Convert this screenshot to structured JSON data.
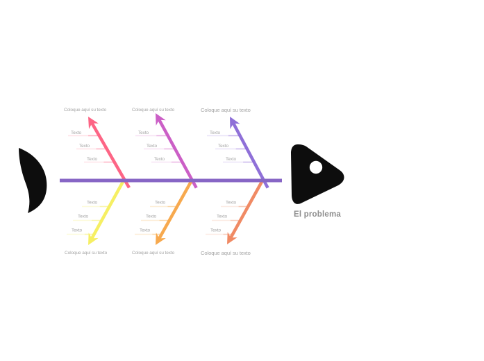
{
  "canvas": {
    "background": "#ffffff"
  },
  "problem": {
    "label": "El problema",
    "color": "#8d8d8d"
  },
  "fish": {
    "body_color": "#0d0d0d",
    "eye_color": "#ffffff",
    "spine_color": "#8766c5"
  },
  "label_color": "#a4a4a4",
  "branches": {
    "top": [
      {
        "title": "Coloque aquí su texto",
        "color": "#fd6585",
        "line_light": "#ffe2e8",
        "line_mid": "#ffb0c1",
        "items": [
          "Texto",
          "Texto",
          "Texto"
        ],
        "title_large": false
      },
      {
        "title": "Coloque aquí su texto",
        "color": "#cb5fc6",
        "line_light": "#f7e2f5",
        "line_mid": "#e9b2e3",
        "items": [
          "Texto",
          "Texto",
          "Texto"
        ],
        "title_large": false
      },
      {
        "title": "Coloque aquí su texto",
        "color": "#8f70d8",
        "line_light": "#e9e3f8",
        "line_mid": "#c7b4ec",
        "items": [
          "Texto",
          "Texto",
          "Texto"
        ],
        "title_large": true
      }
    ],
    "bottom": [
      {
        "title": "Coloque aquí su texto",
        "color": "#f6ef63",
        "line_light": "#fdfbdb",
        "line_mid": "#faf6ad",
        "items": [
          "Texto",
          "Texto",
          "Texto"
        ],
        "title_large": false
      },
      {
        "title": "Coloque aquí su texto",
        "color": "#f7a94e",
        "line_light": "#fdeed7",
        "line_mid": "#fbd8a9",
        "items": [
          "Texto",
          "Texto",
          "Texto"
        ],
        "title_large": false
      },
      {
        "title": "Coloque aquí su texto",
        "color": "#f08a64",
        "line_light": "#fcebe4",
        "line_mid": "#f8ccba",
        "items": [
          "Texto",
          "Texto",
          "Texto"
        ],
        "title_large": true
      }
    ]
  }
}
